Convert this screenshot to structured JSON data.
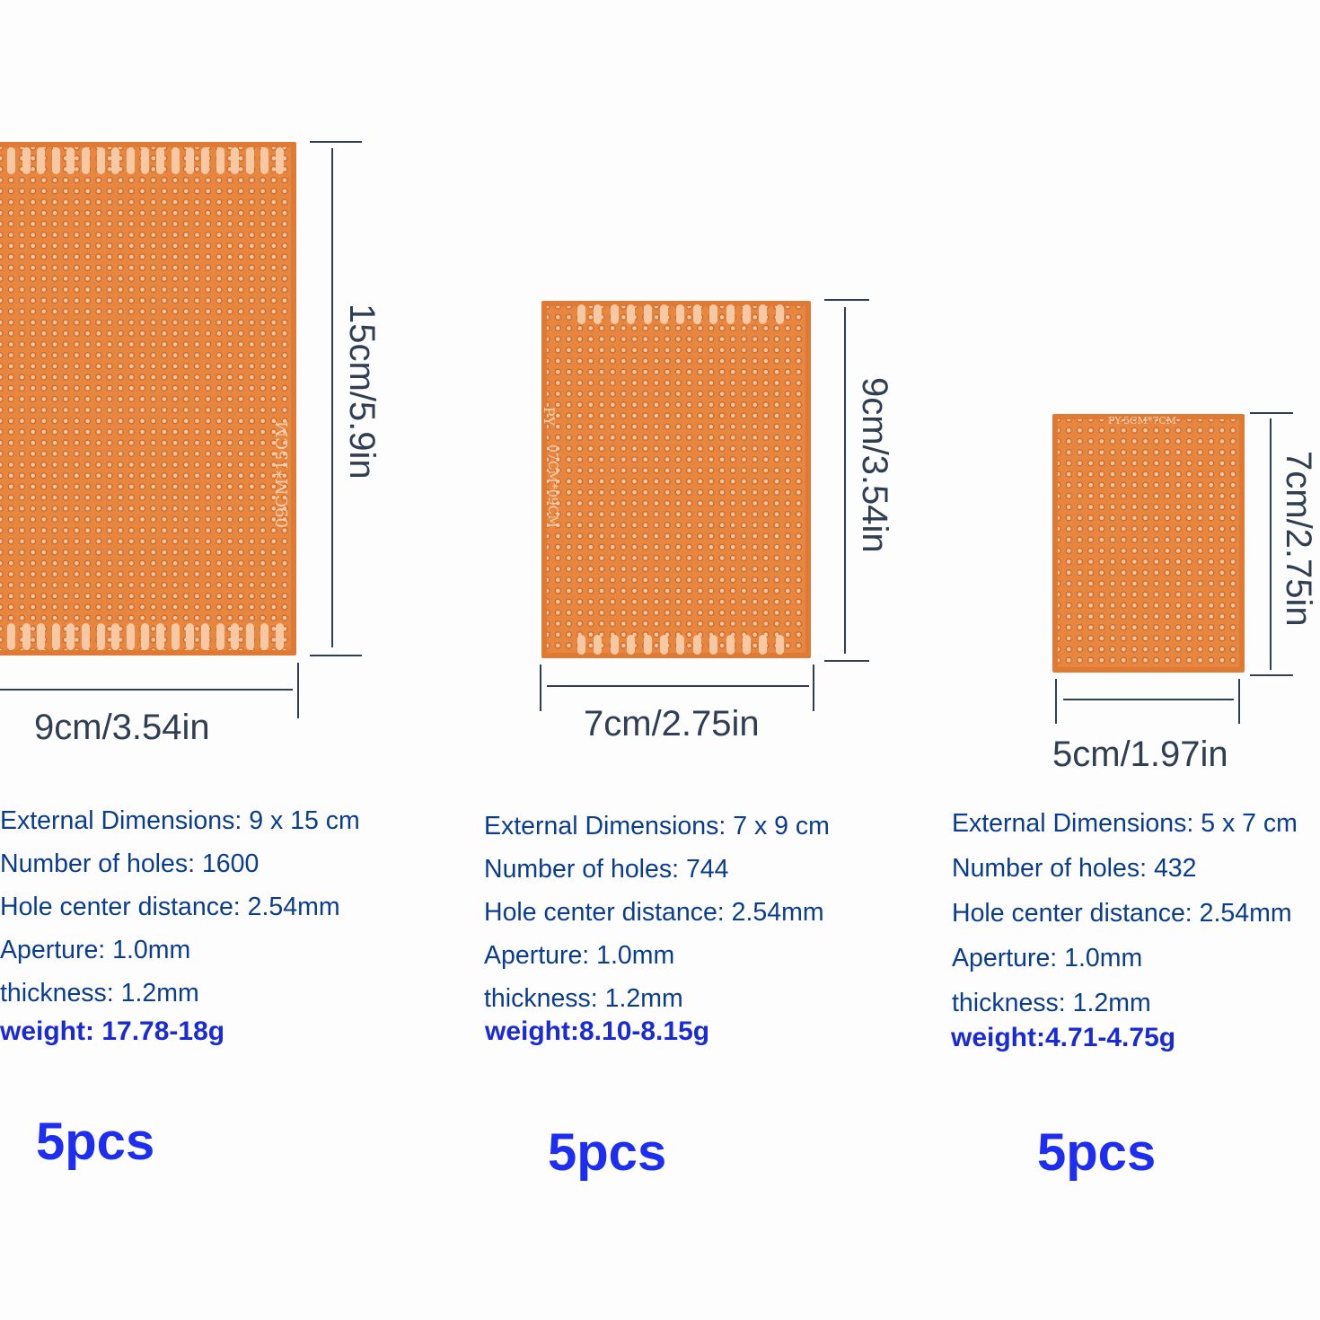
{
  "products": [
    {
      "silkscreen": "09CM*15CM",
      "height_label": "15cm/5.9in",
      "width_label": "9cm/3.54in",
      "specs": [
        "External Dimensions: 9 x 15 cm",
        "Number of holes: 1600",
        "Hole center distance: 2.54mm",
        "Aperture: 1.0mm",
        "thickness: 1.2mm"
      ],
      "weight": "weight: 17.78-18g",
      "quantity": "5pcs"
    },
    {
      "silkscreen": "07CM*09CM",
      "silkscreen_brand": "PY",
      "height_label": "9cm/3.54in",
      "width_label": "7cm/2.75in",
      "specs": [
        "External Dimensions: 7 x 9 cm",
        "Number of holes: 744",
        "Hole center distance: 2.54mm",
        "Aperture: 1.0mm",
        "thickness: 1.2mm"
      ],
      "weight": "weight:8.10-8.15g",
      "quantity": "5pcs"
    },
    {
      "silkscreen": "PY-5CM*7CM",
      "height_label": "7cm/2.75in",
      "width_label": "5cm/1.97in",
      "specs": [
        "External Dimensions: 5 x 7 cm",
        "Number of holes: 432",
        "Hole center distance: 2.54mm",
        "Aperture: 1.0mm",
        "thickness: 1.2mm"
      ],
      "weight": "weight:4.71-4.75g",
      "quantity": "5pcs"
    }
  ],
  "colors": {
    "board": "#e7863f",
    "text": "#2f3e52",
    "weight": "#1a2bd6",
    "quantity": "#1d2ef0"
  }
}
